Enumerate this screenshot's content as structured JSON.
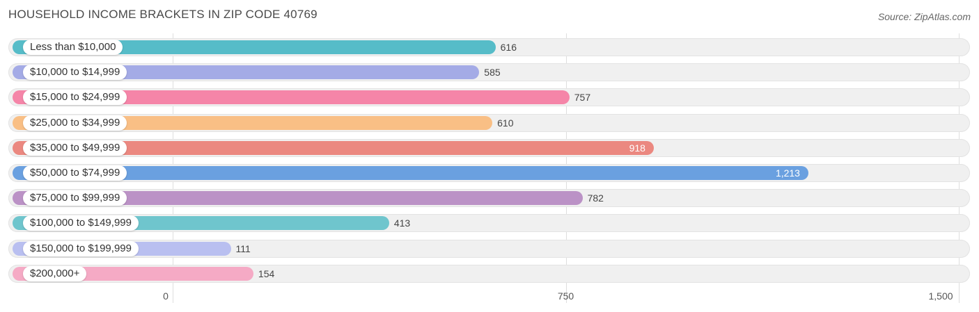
{
  "title": "HOUSEHOLD INCOME BRACKETS IN ZIP CODE 40769",
  "source": "Source: ZipAtlas.com",
  "chart_data": {
    "type": "bar",
    "orientation": "horizontal",
    "title": "HOUSEHOLD INCOME BRACKETS IN ZIP CODE 40769",
    "xlabel": "",
    "ylabel": "",
    "xlim": [
      0,
      1500
    ],
    "ticks": [
      {
        "value": 0,
        "label": "0"
      },
      {
        "value": 750,
        "label": "750"
      },
      {
        "value": 1500,
        "label": "1,500"
      }
    ],
    "categories": [
      "Less than $10,000",
      "$10,000 to $14,999",
      "$15,000 to $24,999",
      "$25,000 to $34,999",
      "$35,000 to $49,999",
      "$50,000 to $74,999",
      "$75,000 to $99,999",
      "$100,000 to $149,999",
      "$150,000 to $199,999",
      "$200,000+"
    ],
    "values": [
      616,
      585,
      757,
      610,
      918,
      1213,
      782,
      413,
      111,
      154
    ],
    "value_labels": [
      "616",
      "585",
      "757",
      "610",
      "918",
      "1,213",
      "782",
      "413",
      "111",
      "154"
    ],
    "colors": [
      "#56bcc8",
      "#a4abe6",
      "#f585a8",
      "#f9bf85",
      "#eb8880",
      "#6aa0e0",
      "#bb92c6",
      "#6fc5cd",
      "#b9bff0",
      "#f5aac5"
    ]
  }
}
